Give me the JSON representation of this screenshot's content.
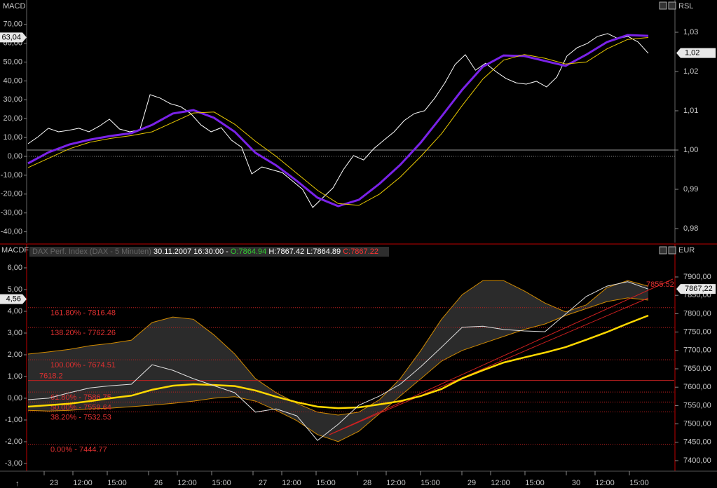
{
  "top_panel": {
    "title": "MACD",
    "right_title": "RSL",
    "left_ticks": [
      {
        "value": 70,
        "label": "70,00"
      },
      {
        "value": 60,
        "label": "60,00"
      },
      {
        "value": 50,
        "label": "50,00"
      },
      {
        "value": 40,
        "label": "40,00"
      },
      {
        "value": 30,
        "label": "30,00"
      },
      {
        "value": 20,
        "label": "20,00"
      },
      {
        "value": 10,
        "label": "10,00"
      },
      {
        "value": 0,
        "label": "0,00"
      },
      {
        "value": -10,
        "label": "-10,00"
      },
      {
        "value": -20,
        "label": "-20,00"
      },
      {
        "value": -30,
        "label": "-30,00"
      },
      {
        "value": -40,
        "label": "-40,00"
      }
    ],
    "right_ticks": [
      {
        "value": 1.03,
        "label": "1,03"
      },
      {
        "value": 1.02,
        "label": "1,02"
      },
      {
        "value": 1.01,
        "label": "1,01"
      },
      {
        "value": 1,
        "label": "1,00"
      },
      {
        "value": 0.99,
        "label": "0,99"
      },
      {
        "value": 0.98,
        "label": "0,98"
      }
    ],
    "left_current": {
      "value": 63.04,
      "label": "63,04"
    },
    "right_current": {
      "value": 1.0247,
      "label": "1,02"
    },
    "series": [
      {
        "color": "#ffffff",
        "width": 1,
        "values": [
          6.7,
          10.4,
          14.9,
          13,
          13.8,
          14.9,
          13,
          16,
          19.7,
          14.5,
          13,
          14.1,
          32.7,
          30.9,
          27.9,
          26.4,
          22.7,
          16.7,
          13,
          15.2,
          8.6,
          4.8,
          -9.3,
          -5.6,
          -7.1,
          -8.6,
          -13,
          -17.5,
          -27.1,
          -21.9,
          -16.7,
          -7.1,
          0.4,
          -1.9,
          4.1,
          8.6,
          13,
          19,
          22.7,
          24.2,
          30.9,
          39,
          48.7,
          53.9,
          45.7,
          49.4,
          45,
          41.3,
          39,
          38.3,
          39.8,
          36.8,
          42,
          53.2,
          57.6,
          59.9,
          63.6,
          65.1,
          62.5,
          63.6,
          60.6,
          54.6
        ]
      },
      {
        "color": "#7a22e8",
        "width": 3,
        "values": [
          -3.7,
          2.2,
          6.3,
          8.9,
          10.8,
          12.3,
          16.7,
          22.7,
          24.5,
          20.4,
          13,
          1.9,
          -4.8,
          -13,
          -21.9,
          -26.4,
          -23,
          -14.5,
          -4.5,
          7.4,
          21.2,
          35.3,
          47.6,
          53.5,
          53.2,
          50.6,
          48,
          53.9,
          60.6,
          64.3,
          63.9
        ]
      },
      {
        "color": "#e8c800",
        "width": 1,
        "values": [
          -6,
          -1,
          4,
          7.5,
          9.5,
          11,
          13,
          18,
          23,
          23.5,
          17,
          8,
          0,
          -9,
          -18,
          -25,
          -26,
          -20,
          -11,
          0,
          12,
          27,
          41,
          51,
          54,
          52,
          49,
          50,
          57,
          62,
          63
        ]
      }
    ]
  },
  "bottom_panel": {
    "title": "MACDF",
    "right_title": "EUR",
    "instrument": "DAX Perf. Index (DAX - 5 Minuten)",
    "timestamp": "30.11.2007 16:30:00 -",
    "open": "O:7864.94",
    "high": "H:7867.42",
    "low": "L:7864.89",
    "close": "C:7867.22",
    "left_ticks": [
      {
        "value": 6,
        "label": "6,00"
      },
      {
        "value": 5,
        "label": "5,00"
      },
      {
        "value": 4,
        "label": "4,00"
      },
      {
        "value": 3,
        "label": "3,00"
      },
      {
        "value": 2,
        "label": "2,00"
      },
      {
        "value": 1,
        "label": "1,00"
      },
      {
        "value": 0,
        "label": "0,00"
      },
      {
        "value": -1,
        "label": "-1,00"
      },
      {
        "value": -2,
        "label": "-2,00"
      },
      {
        "value": -3,
        "label": "-3,00"
      }
    ],
    "right_ticks": [
      {
        "value": 7900,
        "label": "7900,00"
      },
      {
        "value": 7850,
        "label": "7850,00"
      },
      {
        "value": 7800,
        "label": "7800,00"
      },
      {
        "value": 7750,
        "label": "7750,00"
      },
      {
        "value": 7700,
        "label": "7700,00"
      },
      {
        "value": 7650,
        "label": "7650,00"
      },
      {
        "value": 7600,
        "label": "7600,00"
      },
      {
        "value": 7550,
        "label": "7550,00"
      },
      {
        "value": 7500,
        "label": "7500,00"
      },
      {
        "value": 7450,
        "label": "7450,00"
      },
      {
        "value": 7400,
        "label": "7400,00"
      }
    ],
    "left_current": {
      "value": 4.56,
      "label": "4,56"
    },
    "right_current": {
      "value": 7867.22,
      "label": "7867,22"
    },
    "band_label": {
      "value": 7855.52,
      "label": "7855.52"
    },
    "pivot": {
      "value": 7618.2,
      "label": "7618.2"
    },
    "fib_levels": [
      {
        "value": 7816.48,
        "label": "161.80% - 7816.48"
      },
      {
        "value": 7762.26,
        "label": "138.20% - 7762.26"
      },
      {
        "value": 7674.51,
        "label": "100.00% - 7674.51"
      },
      {
        "value": 7586.75,
        "label": "61.80% - 7586.75"
      },
      {
        "value": 7559.64,
        "label": "50.00% - 7559.64"
      },
      {
        "value": 7532.53,
        "label": "38.20% - 7532.53"
      },
      {
        "value": 7444.77,
        "label": "0.00% - 7444.77"
      }
    ],
    "band_upper": [
      7690,
      7696,
      7703,
      7713,
      7719,
      7728,
      7776,
      7791,
      7785,
      7742,
      7690,
      7623,
      7585,
      7556,
      7532,
      7524,
      7532,
      7566,
      7623,
      7700,
      7785,
      7852,
      7890,
      7890,
      7862,
      7829,
      7805,
      7824,
      7871,
      7890,
      7875
    ],
    "band_lower": [
      7537,
      7535,
      7537,
      7541,
      7543,
      7547,
      7551,
      7556,
      7562,
      7570,
      7574,
      7562,
      7537,
      7509,
      7471,
      7452,
      7480,
      7528,
      7576,
      7623,
      7671,
      7700,
      7719,
      7738,
      7757,
      7772,
      7795,
      7814,
      7833,
      7843,
      7837
    ],
    "price": [
      7566,
      7570,
      7585,
      7598,
      7604,
      7608,
      7661,
      7646,
      7623,
      7604,
      7585,
      7532,
      7541,
      7522,
      7455,
      7499,
      7551,
      7576,
      7608,
      7656,
      7709,
      7763,
      7766,
      7757,
      7753,
      7751,
      7799,
      7847,
      7875,
      7887,
      7867
    ],
    "average": [
      7547,
      7551,
      7555,
      7562,
      7570,
      7577,
      7593,
      7604,
      7608,
      7606,
      7603,
      7591,
      7574,
      7559,
      7547,
      7543,
      7545,
      7553,
      7562,
      7576,
      7595,
      7624,
      7646,
      7667,
      7681,
      7694,
      7709,
      7729,
      7750,
      7773,
      7795
    ]
  },
  "x_labels": [
    "23",
    "12:00",
    "15:00",
    "26",
    "12:00",
    "15:00",
    "27",
    "12:00",
    "15:00",
    "28",
    "12:00",
    "15:00",
    "29",
    "12:00",
    "15:00",
    "30",
    "12:00",
    "15:00"
  ]
}
